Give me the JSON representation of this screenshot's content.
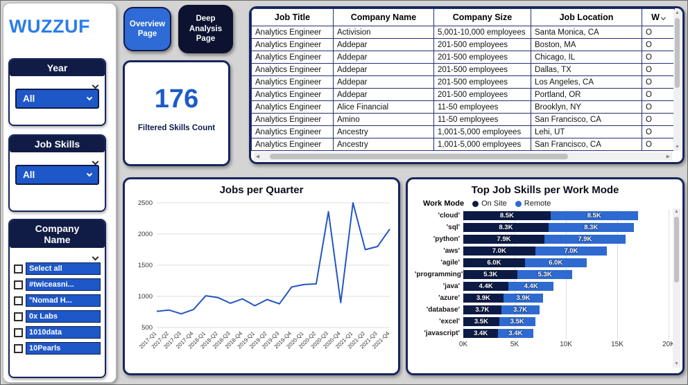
{
  "app": {
    "logo": "WUZZUF"
  },
  "nav": {
    "overview_label": "Overview Page",
    "deep_label": "Deep Analysis Page"
  },
  "filters": {
    "year": {
      "label": "Year",
      "value": "All"
    },
    "job_skills": {
      "label": "Job Skills",
      "value": "All"
    },
    "company": {
      "label": "Company\nName",
      "items": [
        "Select all",
        "#twiceasni...",
        "°Nomad H...",
        "0x Labs",
        "1010data",
        "10Pearls"
      ]
    }
  },
  "kpi": {
    "value": "176",
    "label": "Filtered Skills Count"
  },
  "table": {
    "columns": [
      "Job Title",
      "Company Name",
      "Company Size",
      "Job Location",
      "W"
    ],
    "rows": [
      [
        "Analytics Engineer",
        "Activision",
        "5,001-10,000 employees",
        "Santa Monica, CA",
        "O"
      ],
      [
        "Analytics Engineer",
        "Addepar",
        "201-500 employees",
        "Boston, MA",
        "O"
      ],
      [
        "Analytics Engineer",
        "Addepar",
        "201-500 employees",
        "Chicago, IL",
        "O"
      ],
      [
        "Analytics Engineer",
        "Addepar",
        "201-500 employees",
        "Dallas, TX",
        "O"
      ],
      [
        "Analytics Engineer",
        "Addepar",
        "201-500 employees",
        "Los Angeles, CA",
        "O"
      ],
      [
        "Analytics Engineer",
        "Addepar",
        "201-500 employees",
        "Portland, OR",
        "O"
      ],
      [
        "Analytics Engineer",
        "Alice Financial",
        "11-50 employees",
        "Brooklyn, NY",
        "O"
      ],
      [
        "Analytics Engineer",
        "Amino",
        "11-50 employees",
        "San Francisco, CA",
        "O"
      ],
      [
        "Analytics Engineer",
        "Ancestry",
        "1,001-5,000 employees",
        "Lehi, UT",
        "O"
      ],
      [
        "Analytics Engineer",
        "Ancestry",
        "1,001-5,000 employees",
        "San Francisco, CA",
        "O"
      ]
    ]
  },
  "chart_data": [
    {
      "type": "line",
      "title": "Jobs per Quarter",
      "x": [
        "2017-Q1",
        "2017-Q2",
        "2017-Q3",
        "2017-Q4",
        "2018-Q1",
        "2018-Q2",
        "2018-Q3",
        "2018-Q4",
        "2019-Q1",
        "2019-Q2",
        "2019-Q3",
        "2019-Q4",
        "2020-Q1",
        "2020-Q2",
        "2020-Q3",
        "2020-Q4",
        "2021-Q1",
        "2021-Q2",
        "2021-Q3",
        "2021-Q4"
      ],
      "values": [
        760,
        780,
        720,
        790,
        1010,
        980,
        890,
        960,
        850,
        950,
        880,
        1150,
        1190,
        1200,
        2360,
        900,
        2500,
        1750,
        1800,
        2080
      ],
      "ylim": [
        500,
        2500
      ],
      "yticks": [
        500,
        1000,
        1500,
        2000,
        2500
      ],
      "color": "#2255c4",
      "grid": true,
      "legend_position": "none"
    },
    {
      "type": "bar",
      "orientation": "horizontal",
      "stacked": true,
      "title": "Top Job Skills per Work Mode",
      "legend_title": "Work Mode",
      "legend_position": "top",
      "categories": [
        "'cloud'",
        "'sql'",
        "'python'",
        "'aws'",
        "'agile'",
        "'programming'",
        "'java'",
        "'azure'",
        "'database'",
        "'excel'",
        "'javascript'"
      ],
      "series": [
        {
          "name": "On Site",
          "color": "#0c1b45",
          "values": [
            8500,
            8300,
            7900,
            7000,
            6000,
            5300,
            4400,
            3900,
            3700,
            3500,
            3400
          ],
          "labels": [
            "8.5K",
            "8.3K",
            "7.9K",
            "7.0K",
            "6.0K",
            "5.3K",
            "4.4K",
            "3.9K",
            "3.7K",
            "3.5K",
            "3.4K"
          ]
        },
        {
          "name": "Remote",
          "color": "#2e6ad0",
          "values": [
            8500,
            8300,
            7900,
            7000,
            6000,
            5300,
            4400,
            3900,
            3700,
            3500,
            3400
          ],
          "labels": [
            "8.5K",
            "8.3K",
            "7.9K",
            "7.0K",
            "6.0K",
            "5.3K",
            "4.4K",
            "3.9K",
            "3.7K",
            "3.5K",
            "3.4K"
          ]
        }
      ],
      "xticks": [
        "0K",
        "5K",
        "10K",
        "15K",
        "20K"
      ],
      "xlim": [
        0,
        20000
      ],
      "grid": true
    }
  ],
  "theme": {
    "background": "#d4d4d4",
    "navy": "#101c45",
    "accent_blue": "#1e57c8",
    "logo_blue": "#2b7de9",
    "line_color": "#2255c4",
    "onsite_color": "#0c1b45",
    "remote_color": "#2e6ad0"
  }
}
